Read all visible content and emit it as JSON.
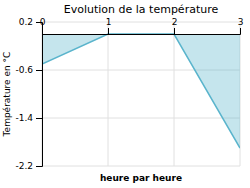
{
  "chart_data": {
    "type": "area",
    "title": "Evolution de la température",
    "xlabel": "heure par heure",
    "ylabel": "Température en °C",
    "x": [
      0,
      1,
      2,
      3
    ],
    "values": [
      -0.5,
      0.0,
      0.0,
      -1.9
    ],
    "color": "#5ab4cc",
    "xlim": [
      0,
      3
    ],
    "ylim": [
      -2.2,
      0.2
    ],
    "xticks": [
      0,
      1,
      2,
      3
    ],
    "yticks": [
      0.2,
      -0.6,
      -1.4,
      -2.2
    ],
    "grid": true
  }
}
